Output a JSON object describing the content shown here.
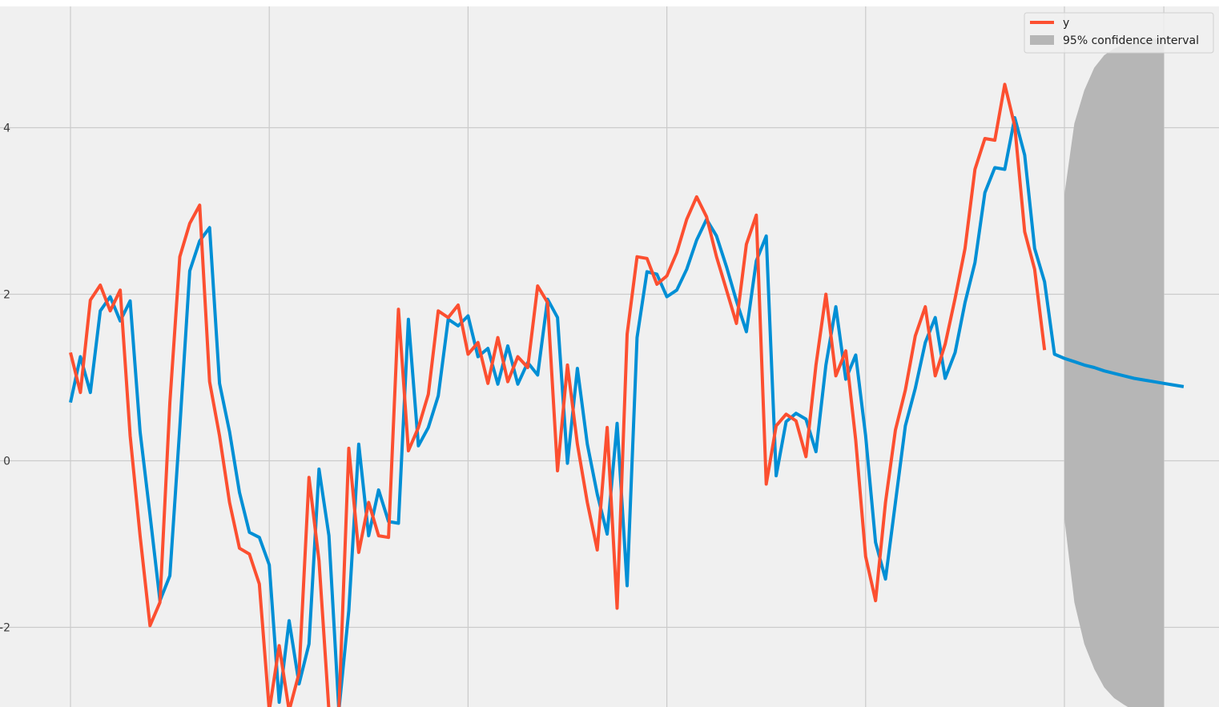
{
  "chart_data": {
    "type": "line",
    "title": "",
    "xlabel": "",
    "ylabel": "",
    "ylim": [
      -2.95,
      5.45
    ],
    "x_index_range": [
      0,
      110
    ],
    "x_gridline_indices": [
      0,
      20,
      40,
      60,
      80,
      100,
      110
    ],
    "yticks": [
      -2,
      0,
      2,
      4
    ],
    "ytick_labels": [
      "-2",
      "0",
      "2",
      "4"
    ],
    "grid": true,
    "legend_position": "top-right",
    "colors": {
      "background": "#f0f0f0",
      "grid": "#cbcbcb",
      "observed": "#fc4f30",
      "fitted": "#008fd5",
      "ci": "#b6b6b6"
    },
    "legend": {
      "observed_label": "y",
      "ci_label": "95% confidence interval"
    },
    "series": [
      {
        "name": "y",
        "role": "observed",
        "start_index": 0,
        "values": [
          1.3,
          0.82,
          1.93,
          2.11,
          1.8,
          2.05,
          0.3,
          -0.9,
          -1.98,
          -1.7,
          0.7,
          2.45,
          2.85,
          3.07,
          0.95,
          0.3,
          -0.5,
          -1.05,
          -1.12,
          -1.48,
          -3.0,
          -2.22,
          -3.0,
          -2.55,
          -0.2,
          -1.2,
          -3.0,
          -3.0,
          0.15,
          -1.1,
          -0.5,
          -0.9,
          -0.92,
          1.82,
          0.12,
          0.4,
          0.8,
          1.8,
          1.72,
          1.87,
          1.28,
          1.42,
          0.93,
          1.48,
          0.95,
          1.25,
          1.12,
          2.1,
          1.9,
          -0.12,
          1.15,
          0.2,
          -0.5,
          -1.07,
          0.4,
          -1.77,
          1.52,
          2.45,
          2.43,
          2.12,
          2.22,
          2.5,
          2.9,
          3.17,
          2.93,
          2.45,
          2.05,
          1.65,
          2.6,
          2.95,
          -0.28,
          0.42,
          0.56,
          0.48,
          0.05,
          1.15,
          2.0,
          1.02,
          1.32,
          0.25,
          -1.15,
          -1.68,
          -0.5,
          0.37,
          0.85,
          1.5,
          1.85,
          1.02,
          1.4,
          1.95,
          2.55,
          3.5,
          3.87,
          3.85,
          4.52,
          4.02,
          2.75,
          2.3,
          1.33
        ]
      },
      {
        "name": "",
        "role": "fitted_and_forecast",
        "start_index": 0,
        "values": [
          0.7,
          1.25,
          0.82,
          1.8,
          1.97,
          1.68,
          1.92,
          0.35,
          -0.65,
          -1.68,
          -1.38,
          0.4,
          2.28,
          2.64,
          2.8,
          0.93,
          0.35,
          -0.38,
          -0.86,
          -0.92,
          -1.25,
          -2.9,
          -1.92,
          -2.68,
          -2.2,
          -0.1,
          -0.9,
          -3.0,
          -1.8,
          0.2,
          -0.9,
          -0.35,
          -0.73,
          -0.75,
          1.7,
          0.18,
          0.4,
          0.78,
          1.7,
          1.62,
          1.74,
          1.25,
          1.35,
          0.92,
          1.38,
          0.92,
          1.18,
          1.03,
          1.94,
          1.72,
          -0.03,
          1.11,
          0.2,
          -0.4,
          -0.88,
          0.45,
          -1.5,
          1.48,
          2.27,
          2.24,
          1.97,
          2.05,
          2.3,
          2.65,
          2.9,
          2.7,
          2.33,
          1.92,
          1.55,
          2.4,
          2.7,
          -0.18,
          0.47,
          0.57,
          0.5,
          0.11,
          1.15,
          1.85,
          0.98,
          1.27,
          0.3,
          -0.98,
          -1.42,
          -0.5,
          0.42,
          0.87,
          1.42,
          1.72,
          0.99,
          1.3,
          1.9,
          2.38,
          3.22,
          3.52,
          3.5,
          4.12,
          3.67,
          2.55,
          2.15,
          1.28,
          1.23,
          1.19,
          1.15,
          1.12,
          1.08,
          1.05,
          1.02,
          0.99,
          0.97,
          0.95,
          0.93,
          0.91,
          0.89
        ]
      }
    ],
    "confidence_interval": {
      "label": "95% confidence interval",
      "x_start_index": 100,
      "x_end_index": 110,
      "upper": [
        3.2,
        4.05,
        4.45,
        4.72,
        4.87,
        4.95,
        5.0,
        5.03,
        5.05,
        5.07,
        5.08
      ],
      "lower": [
        -0.7,
        -1.7,
        -2.2,
        -2.5,
        -2.72,
        -2.85,
        -2.93,
        -3.0,
        -3.0,
        -3.0,
        -3.0
      ]
    }
  }
}
